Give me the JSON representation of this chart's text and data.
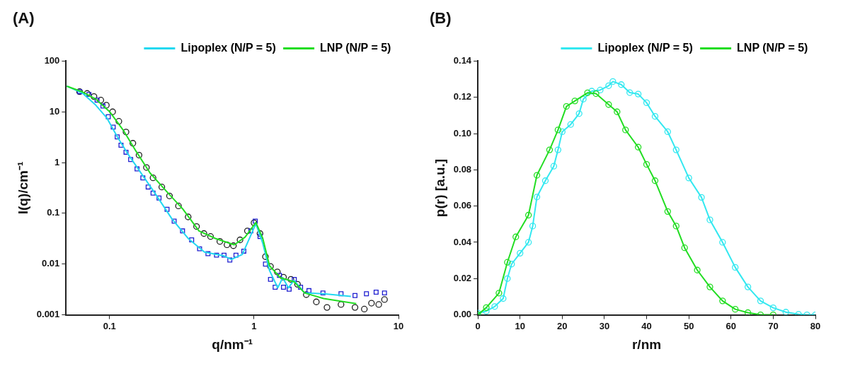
{
  "chart_data": [
    {
      "type": "line",
      "title": "(A)",
      "xlabel": "q/nm⁻¹",
      "ylabel": "I(q)/cm⁻¹",
      "log": "xy",
      "xlim": [
        0.05,
        10
      ],
      "xticks": [
        0.1,
        1,
        10
      ],
      "ylim": [
        0.001,
        100
      ],
      "yticks": [
        0.001,
        0.01,
        0.1,
        1,
        10,
        100
      ],
      "grid": false,
      "legend": "top right",
      "series": [
        {
          "type": "scatter",
          "marker": "circle",
          "color": "#222222",
          "x": [
            0.062,
            0.07,
            0.078,
            0.087,
            0.095,
            0.105,
            0.116,
            0.13,
            0.145,
            0.16,
            0.18,
            0.2,
            0.23,
            0.26,
            0.3,
            0.35,
            0.4,
            0.45,
            0.5,
            0.58,
            0.65,
            0.72,
            0.8,
            0.9,
            1.0,
            1.1,
            1.2,
            1.3,
            1.45,
            1.6,
            1.8,
            2.0,
            2.3,
            2.7,
            3.2,
            4,
            5,
            5.8,
            6.5,
            7.3,
            8
          ],
          "values": [
            25,
            23,
            20,
            17,
            13.5,
            10,
            6.5,
            4,
            2.4,
            1.4,
            0.8,
            0.5,
            0.33,
            0.22,
            0.14,
            0.085,
            0.055,
            0.04,
            0.035,
            0.028,
            0.024,
            0.023,
            0.03,
            0.045,
            0.065,
            0.04,
            0.014,
            0.009,
            0.007,
            0.0055,
            0.005,
            0.004,
            0.0025,
            0.0018,
            0.0014,
            0.0016,
            0.0014,
            0.0013,
            0.0017,
            0.0016,
            0.002
          ]
        },
        {
          "type": "scatter",
          "marker": "square",
          "color": "#1f1fd0",
          "x": [
            0.062,
            0.072,
            0.082,
            0.09,
            0.098,
            0.106,
            0.113,
            0.12,
            0.13,
            0.14,
            0.155,
            0.17,
            0.185,
            0.2,
            0.22,
            0.25,
            0.28,
            0.32,
            0.37,
            0.42,
            0.48,
            0.55,
            0.62,
            0.68,
            0.75,
            0.85,
            0.95,
            1.02,
            1.1,
            1.2,
            1.3,
            1.4,
            1.5,
            1.6,
            1.75,
            1.9,
            2.1,
            2.4,
            3,
            4,
            5,
            6,
            7,
            8
          ],
          "values": [
            25,
            22,
            17,
            13,
            8,
            5,
            3.2,
            2.2,
            1.6,
            1.15,
            0.75,
            0.5,
            0.33,
            0.25,
            0.2,
            0.12,
            0.07,
            0.045,
            0.03,
            0.02,
            0.016,
            0.015,
            0.015,
            0.012,
            0.015,
            0.018,
            0.045,
            0.07,
            0.035,
            0.01,
            0.005,
            0.0035,
            0.006,
            0.0035,
            0.0032,
            0.005,
            0.0035,
            0.003,
            0.0027,
            0.0026,
            0.0024,
            0.0026,
            0.0028,
            0.0027
          ]
        },
        {
          "type": "line",
          "marker": "none",
          "name": "Lipoplex (N/P = 5)",
          "color": "#22d8f0",
          "x": [
            0.0506,
            0.0649,
            0.0805,
            0.0957,
            0.114,
            0.135,
            0.168,
            0.208,
            0.27,
            0.35,
            0.454,
            0.614,
            0.698,
            0.83,
            1.03,
            1.15,
            1.28,
            1.46,
            1.58,
            1.73,
            1.89,
            2.24,
            3.03,
            4.68
          ],
          "values": [
            32,
            23.4,
            13.4,
            7.6,
            3.1,
            1.43,
            0.58,
            0.24,
            0.078,
            0.032,
            0.0173,
            0.0146,
            0.0124,
            0.0155,
            0.0625,
            0.0256,
            0.0075,
            0.0034,
            0.0054,
            0.0034,
            0.0048,
            0.0027,
            0.0026,
            0.0023
          ]
        },
        {
          "type": "line",
          "marker": "none",
          "name": "LNP (N/P = 5)",
          "color": "#22dd22",
          "x": [
            0.0506,
            0.0649,
            0.0805,
            0.1,
            0.124,
            0.154,
            0.191,
            0.248,
            0.321,
            0.416,
            0.54,
            0.73,
            0.867,
            1.03,
            1.15,
            1.28,
            1.52,
            1.89,
            2.24,
            3.03,
            5.1
          ],
          "values": [
            32,
            24.7,
            17.7,
            10.1,
            4.4,
            1.6,
            0.62,
            0.27,
            0.122,
            0.045,
            0.032,
            0.024,
            0.034,
            0.066,
            0.032,
            0.0093,
            0.0054,
            0.0045,
            0.0027,
            0.0021,
            0.00166
          ]
        }
      ]
    },
    {
      "type": "line",
      "title": "(B)",
      "xlabel": "r/nm",
      "ylabel": "p(r) [a.u.]",
      "xlim": [
        0,
        80
      ],
      "xticks": [
        0,
        10,
        20,
        30,
        40,
        50,
        60,
        70,
        80
      ],
      "ylim": [
        0,
        0.14
      ],
      "yticks": [
        {
          "value": 0,
          "label": "0.00"
        },
        0.02,
        0.04,
        0.06,
        0.08,
        {
          "value": 0.1,
          "label": "0.10"
        },
        0.12,
        0.14
      ],
      "grid": false,
      "legend": "top right",
      "marker": "circle",
      "series": [
        {
          "name": "Lipoplex (N/P = 5)",
          "color": "#33e8f0",
          "x": [
            0,
            2,
            4,
            6,
            7,
            8,
            10,
            12,
            13,
            14,
            16,
            18,
            19,
            20,
            22,
            24,
            25,
            27,
            29,
            31,
            32,
            34,
            36,
            38,
            40,
            42,
            45,
            47,
            50,
            53,
            55,
            58,
            61,
            64,
            67,
            70,
            73,
            76,
            78,
            80
          ],
          "values": [
            0.001,
            0.002,
            0.0046,
            0.009,
            0.02,
            0.028,
            0.034,
            0.04,
            0.049,
            0.065,
            0.074,
            0.082,
            0.091,
            0.101,
            0.105,
            0.111,
            0.119,
            0.1234,
            0.124,
            0.1264,
            0.1287,
            0.127,
            0.1226,
            0.1218,
            0.117,
            0.1095,
            0.101,
            0.091,
            0.0755,
            0.0648,
            0.0524,
            0.04,
            0.0262,
            0.0154,
            0.0077,
            0.0039,
            0.0015,
            0.0003,
            0,
            0
          ]
        },
        {
          "name": "LNP (N/P = 5)",
          "color": "#22dd22",
          "x": [
            0,
            2,
            5,
            7,
            9,
            12,
            14,
            17,
            19,
            21,
            23,
            26,
            28,
            31,
            33,
            35,
            38,
            40,
            42,
            45,
            47,
            49,
            52,
            55,
            58,
            61,
            64,
            67,
            70
          ],
          "values": [
            0,
            0.004,
            0.012,
            0.029,
            0.043,
            0.055,
            0.077,
            0.091,
            0.102,
            0.115,
            0.118,
            0.1225,
            0.122,
            0.116,
            0.112,
            0.102,
            0.0925,
            0.083,
            0.074,
            0.057,
            0.049,
            0.037,
            0.0247,
            0.0154,
            0.0077,
            0.0031,
            0.0012,
            0,
            0
          ]
        }
      ]
    }
  ]
}
